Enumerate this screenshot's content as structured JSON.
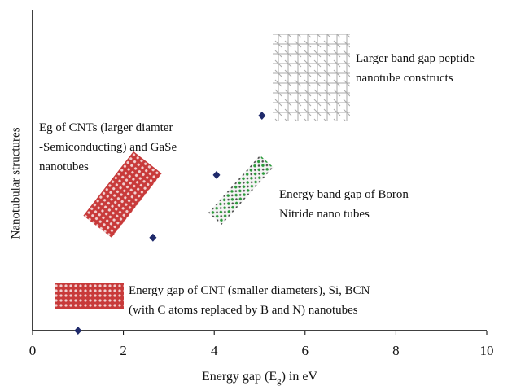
{
  "chart_data": {
    "type": "scatter",
    "xlabel": [
      "Energy gap (E",
      "g",
      ") in eV"
    ],
    "ylabel": "Nanotubular structures",
    "x": [
      1,
      2.65,
      4.05,
      5.05
    ],
    "values": [
      0,
      2.9,
      4.85,
      6.7
    ],
    "color": "#1f2a6b",
    "xlim": [
      0,
      10
    ],
    "xticks": [
      0,
      2,
      4,
      6,
      8,
      10
    ],
    "ylim": [
      0,
      10
    ],
    "annotations": [
      [
        "Energy gap of CNT (smaller diameters), Si, BCN",
        "(with C atoms replaced by B and N) nanotubes"
      ],
      [
        "Eg of CNTs (larger diamter",
        "-Semiconducting) and GaSe",
        "nanotubes"
      ],
      [
        "Energy band gap of Boron",
        "Nitride nano tubes"
      ],
      [
        "Larger band gap peptide",
        "nanotube constructs"
      ]
    ]
  }
}
